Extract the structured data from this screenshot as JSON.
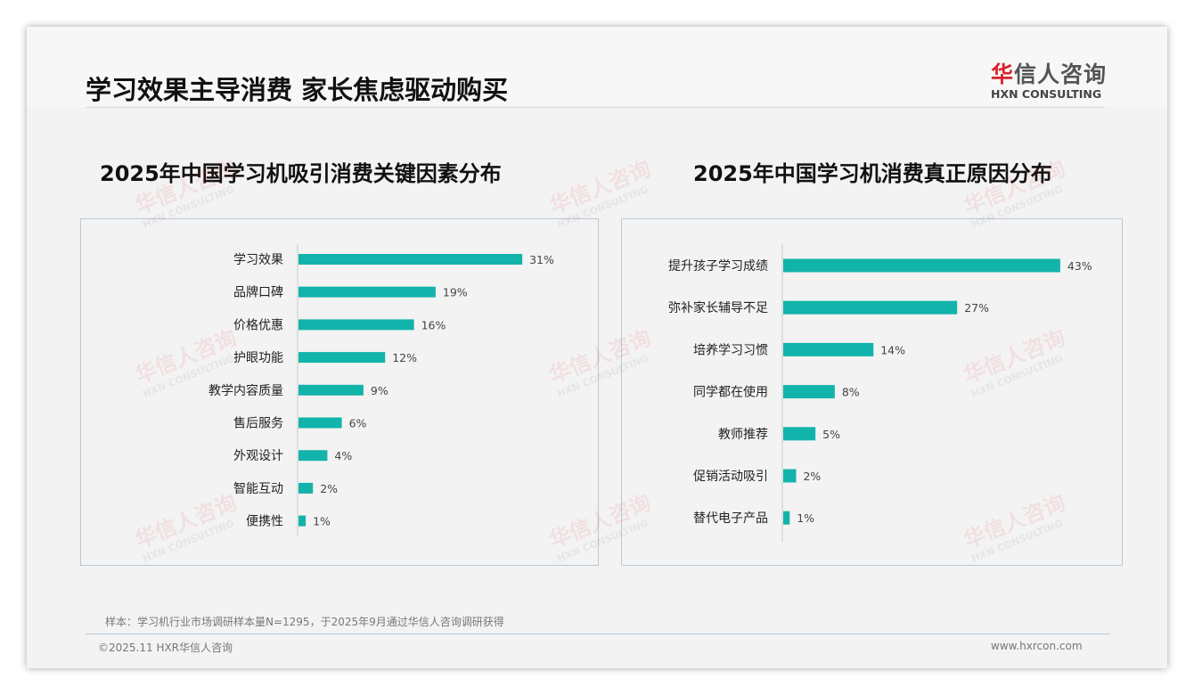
{
  "header": {
    "title": "学习效果主导消费 家长焦虑驱动购买"
  },
  "logo": {
    "cn_red": "华",
    "cn_rest": "信人咨询",
    "en": "HXN CONSULTING"
  },
  "watermark": {
    "cn": "华信人咨询",
    "en": "HXN CONSULTING"
  },
  "colors": {
    "bar": "#12b3aa",
    "axis": "#c8c8c8"
  },
  "chart_data": [
    {
      "type": "bar",
      "orientation": "horizontal",
      "title": "2025年中国学习机吸引消费关键因素分布",
      "categories": [
        "学习效果",
        "品牌口碑",
        "价格优惠",
        "护眼功能",
        "教学内容质量",
        "售后服务",
        "外观设计",
        "智能互动",
        "便携性"
      ],
      "values": [
        31,
        19,
        16,
        12,
        9,
        6,
        4,
        2,
        1
      ],
      "labels": [
        "31%",
        "19%",
        "16%",
        "12%",
        "9%",
        "6%",
        "4%",
        "2%",
        "1%"
      ],
      "unit": "%",
      "xlim": [
        0,
        40
      ]
    },
    {
      "type": "bar",
      "orientation": "horizontal",
      "title": "2025年中国学习机消费真正原因分布",
      "categories": [
        "提升孩子学习成绩",
        "弥补家长辅导不足",
        "培养学习习惯",
        "同学都在使用",
        "教师推荐",
        "促销活动吸引",
        "替代电子产品"
      ],
      "values": [
        43,
        27,
        14,
        8,
        5,
        2,
        1
      ],
      "labels": [
        "43%",
        "27%",
        "14%",
        "8%",
        "5%",
        "2%",
        "1%"
      ],
      "unit": "%",
      "xlim": [
        0,
        50
      ]
    }
  ],
  "footer": {
    "note": "样本：学习机行业市场调研样本量N=1295，于2025年9月通过华信人咨询调研获得",
    "copyright": "©2025.11 HXR华信人咨询",
    "url": "www.hxrcon.com"
  }
}
